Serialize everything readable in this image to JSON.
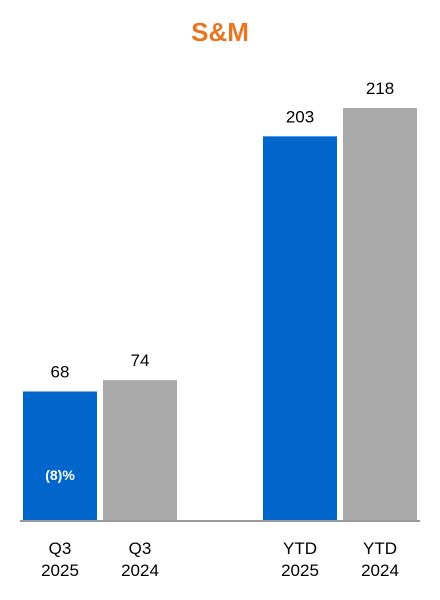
{
  "chart_data": {
    "type": "bar",
    "title": "S&M",
    "categories": [
      "Q3\n2025",
      "Q3\n2024",
      "YTD\n2025",
      "YTD\n2024"
    ],
    "values": [
      68,
      74,
      203,
      218
    ],
    "colors": [
      "#0066cc",
      "#aaaaaa",
      "#0066cc",
      "#aaaaaa"
    ],
    "annotation": "(8)%"
  }
}
